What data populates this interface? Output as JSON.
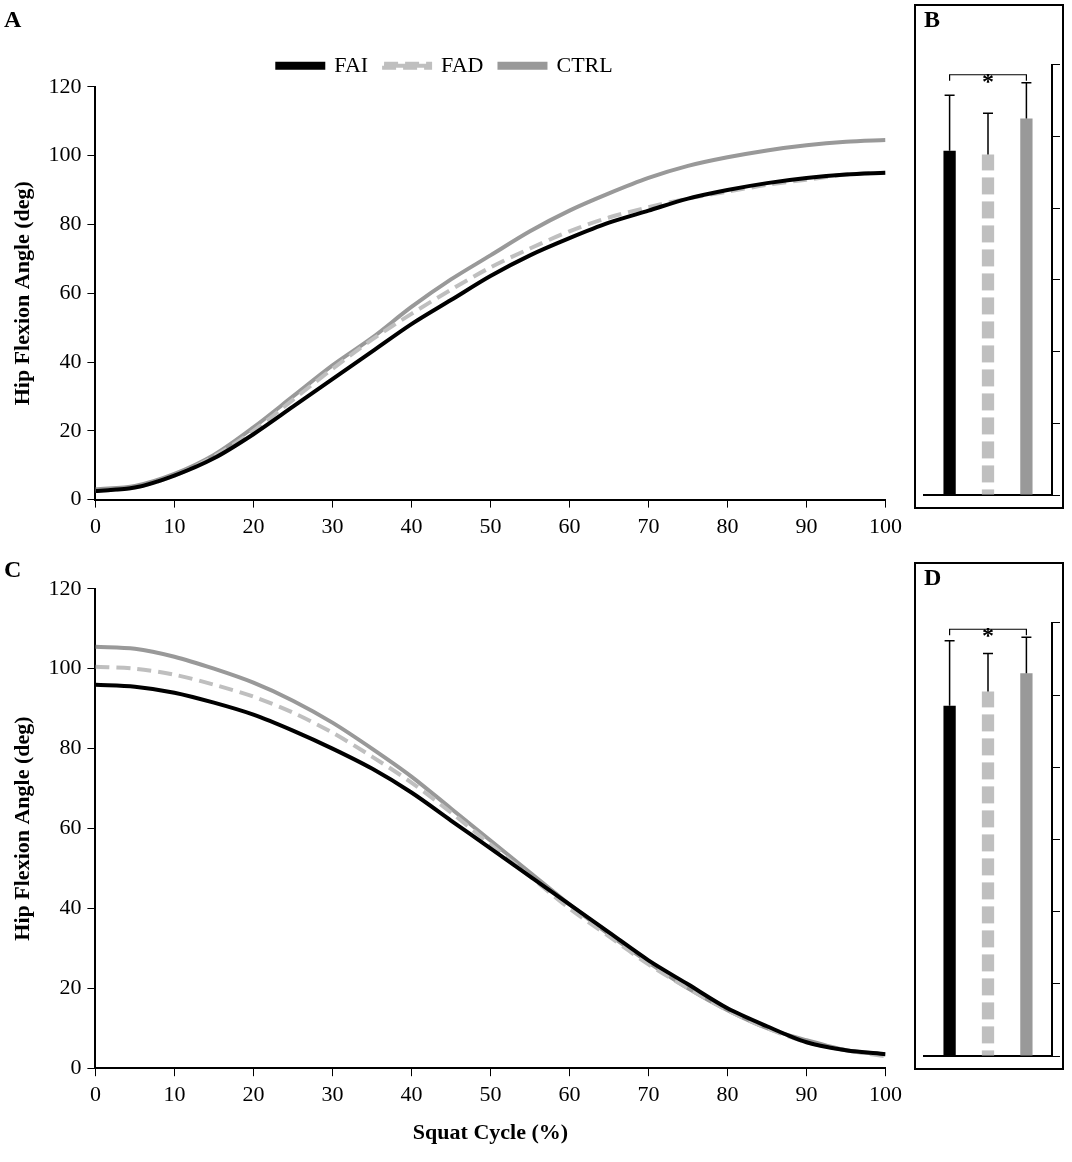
{
  "chart_data": [
    {
      "type": "line",
      "title": "A",
      "ylabel": "Hip Flexion Angle (deg)",
      "xlim": [
        0,
        100
      ],
      "xticks": [
        0,
        10,
        20,
        30,
        40,
        50,
        60,
        70,
        80,
        90,
        100
      ],
      "ylim": [
        0,
        120
      ],
      "yticks": [
        0,
        20,
        40,
        60,
        80,
        100,
        120
      ],
      "grid": false,
      "legend": "top",
      "x": [
        0,
        5,
        10,
        15,
        20,
        25,
        30,
        35,
        40,
        45,
        50,
        55,
        60,
        65,
        70,
        75,
        80,
        85,
        90,
        95,
        100
      ],
      "series": [
        {
          "name": "FAI",
          "color": "#000000",
          "line_style": "solid",
          "values": [
            2.5,
            3.5,
            7,
            12,
            19,
            27,
            35,
            43,
            51,
            58,
            65,
            71,
            76,
            80.5,
            84,
            87.5,
            90,
            92,
            93.5,
            94.5,
            95
          ]
        },
        {
          "name": "FAD",
          "color": "#bfbfbf",
          "line_style": "dashed",
          "values": [
            2.5,
            3.5,
            7,
            12.5,
            20,
            29,
            38,
            46.5,
            54,
            61,
            67.5,
            73,
            78,
            82,
            85,
            87.5,
            89.5,
            91.5,
            93,
            94.5,
            95
          ]
        },
        {
          "name": "CTRL",
          "color": "#999999",
          "line_style": "solid",
          "values": [
            3,
            4,
            7.5,
            13,
            21,
            30,
            39,
            47,
            56,
            64,
            71,
            78,
            84,
            89,
            93.5,
            97,
            99.5,
            101.5,
            103,
            104,
            104.5
          ]
        }
      ]
    },
    {
      "type": "bar",
      "title": "B",
      "categories": [
        null
      ],
      "ylim": [
        0,
        120
      ],
      "yticks": [
        0,
        20,
        40,
        60,
        80,
        100,
        120
      ],
      "grid": false,
      "tick_labels": false,
      "series": [
        {
          "name": "FAI",
          "color": "#000000",
          "line_style": "solid",
          "values": [
            96
          ],
          "errors": [
            15.5
          ]
        },
        {
          "name": "FAD",
          "color": "#bfbfbf",
          "line_style": "dashed",
          "values": [
            95
          ],
          "errors": [
            11.5
          ]
        },
        {
          "name": "CTRL",
          "color": "#999999",
          "line_style": "solid",
          "values": [
            105
          ],
          "errors": [
            10
          ]
        }
      ],
      "annotations": [
        {
          "text": "*",
          "between": [
            "FAI",
            "CTRL"
          ]
        }
      ]
    },
    {
      "type": "line",
      "title": "C",
      "ylabel": "Hip Flexion Angle (deg)",
      "xlabel": "Squat Cycle (%)",
      "xlim": [
        0,
        100
      ],
      "xticks": [
        0,
        10,
        20,
        30,
        40,
        50,
        60,
        70,
        80,
        90,
        100
      ],
      "ylim": [
        0,
        120
      ],
      "yticks": [
        0,
        20,
        40,
        60,
        80,
        100,
        120
      ],
      "grid": false,
      "x": [
        0,
        5,
        10,
        15,
        20,
        25,
        30,
        35,
        40,
        45,
        50,
        55,
        60,
        65,
        70,
        75,
        80,
        85,
        90,
        95,
        100
      ],
      "series": [
        {
          "name": "FAI",
          "color": "#000000",
          "line_style": "solid",
          "values": [
            96,
            95.5,
            94,
            91.5,
            88.5,
            84.5,
            80,
            75,
            69,
            62,
            55,
            48,
            41,
            34,
            27,
            21,
            15,
            10.5,
            6.5,
            4.5,
            3.5
          ]
        },
        {
          "name": "FAD",
          "color": "#bfbfbf",
          "line_style": "dashed",
          "values": [
            100.5,
            100,
            98.5,
            96,
            93,
            89,
            84,
            78,
            71.5,
            64,
            56,
            48,
            40,
            33,
            26,
            20,
            14.5,
            10,
            6.5,
            4.5,
            3
          ]
        },
        {
          "name": "CTRL",
          "color": "#999999",
          "line_style": "solid",
          "values": [
            105.5,
            105,
            103,
            100,
            96.5,
            92,
            86.5,
            80,
            73,
            65,
            57,
            49,
            41,
            33.5,
            26.5,
            20,
            14.5,
            10,
            7,
            4.5,
            3.5
          ]
        }
      ]
    },
    {
      "type": "bar",
      "title": "D",
      "categories": [
        null
      ],
      "ylim": [
        0,
        120
      ],
      "yticks": [
        0,
        20,
        40,
        60,
        80,
        100,
        120
      ],
      "grid": false,
      "tick_labels": false,
      "series": [
        {
          "name": "FAI",
          "color": "#000000",
          "line_style": "solid",
          "values": [
            97
          ],
          "errors": [
            18
          ]
        },
        {
          "name": "FAD",
          "color": "#bfbfbf",
          "line_style": "dashed",
          "values": [
            101
          ],
          "errors": [
            10.5
          ]
        },
        {
          "name": "CTRL",
          "color": "#999999",
          "line_style": "solid",
          "values": [
            106
          ],
          "errors": [
            10
          ]
        }
      ],
      "annotations": [
        {
          "text": "*",
          "between": [
            "FAI",
            "CTRL"
          ]
        }
      ]
    }
  ]
}
